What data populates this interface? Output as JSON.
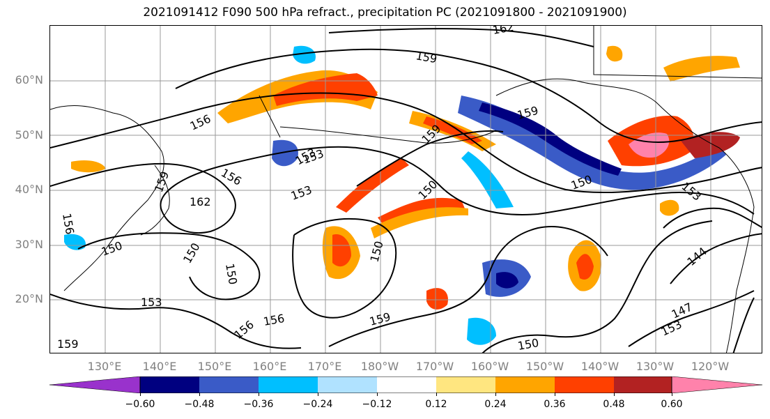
{
  "title": "2021091412 F090 500 hPa refract., precipitation PC (2021091800 - 2021091900)",
  "lat_labels": [
    "60°N",
    "50°N",
    "40°N",
    "30°N",
    "20°N"
  ],
  "lon_labels": [
    "130°E",
    "140°E",
    "150°E",
    "160°E",
    "170°E",
    "180°W",
    "170°W",
    "160°W",
    "150°W",
    "140°W",
    "130°W",
    "120°W"
  ],
  "colorbar": {
    "colors": [
      "#9932cc",
      "#000080",
      "#3a5bc7",
      "#00bfff",
      "#b0e2ff",
      "#ffffff",
      "#ffe680",
      "#ffa500",
      "#ff4000",
      "#b22222",
      "#ff82ab"
    ],
    "tick_labels": [
      "−0.60",
      "−0.48",
      "−0.36",
      "−0.24",
      "−0.12",
      "0.12",
      "0.24",
      "0.36",
      "0.48",
      "0.60"
    ]
  },
  "contour_labels": [
    "162",
    "159",
    "156",
    "153",
    "156",
    "162",
    "159",
    "156",
    "150",
    "150",
    "150",
    "153",
    "159",
    "150",
    "153",
    "153",
    "156",
    "159",
    "150",
    "150",
    "144",
    "147",
    "153",
    "153",
    "159",
    "150",
    "156",
    "159"
  ]
}
